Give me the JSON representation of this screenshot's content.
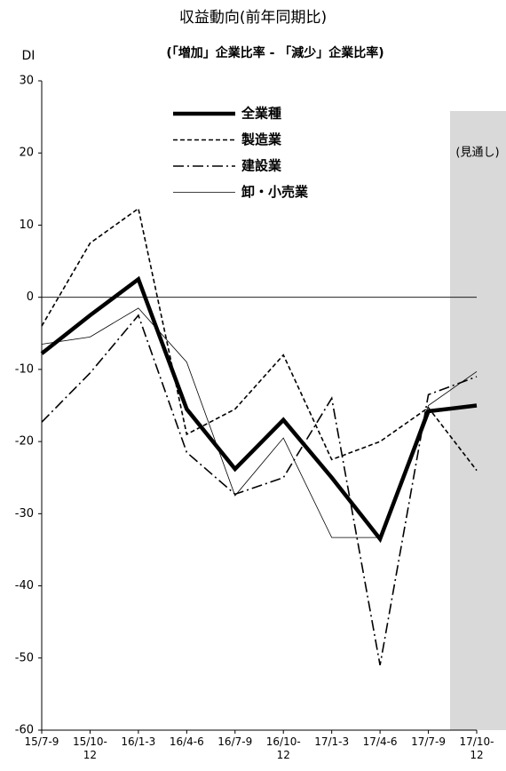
{
  "chart_data": {
    "type": "line",
    "title": "収益動向(前年同期比)",
    "subtitle": "(「増加」企業比率 - 「減少」企業比率)",
    "y_label": "DI",
    "annotation": "(見通し)",
    "categories": [
      "15/7-9",
      "15/10-12",
      "16/1-3",
      "16/4-6",
      "16/7-9",
      "16/10-12",
      "17/1-3",
      "17/4-6",
      "17/7-9",
      "17/10-12"
    ],
    "ylim": [
      -60,
      30
    ],
    "yticks": [
      -60,
      -50,
      -40,
      -30,
      -20,
      -10,
      0,
      10,
      20,
      30
    ],
    "series": [
      {
        "name": "全業種",
        "color": "#000000",
        "values": [
          -7.8,
          -2.5,
          2.5,
          -15.5,
          -23.8,
          -17,
          -25,
          -33.5,
          -15.8,
          -15
        ]
      },
      {
        "name": "製造業",
        "color": "#000000",
        "values": [
          -4,
          7.5,
          12.3,
          -19,
          -15.5,
          -8,
          -22.5,
          -20,
          -15.3,
          -24
        ]
      },
      {
        "name": "建設業",
        "color": "#000000",
        "values": [
          -17.3,
          -10.5,
          -2.5,
          -21.5,
          -27.3,
          -25,
          -14,
          -51,
          -13.5,
          -11
        ]
      },
      {
        "name": "卸・小売業",
        "color": "#000000",
        "values": [
          -6.5,
          -5.5,
          -1.5,
          -9,
          -27.5,
          -19.5,
          -33.3,
          -33.3,
          -15,
          -10.3
        ]
      }
    ]
  }
}
